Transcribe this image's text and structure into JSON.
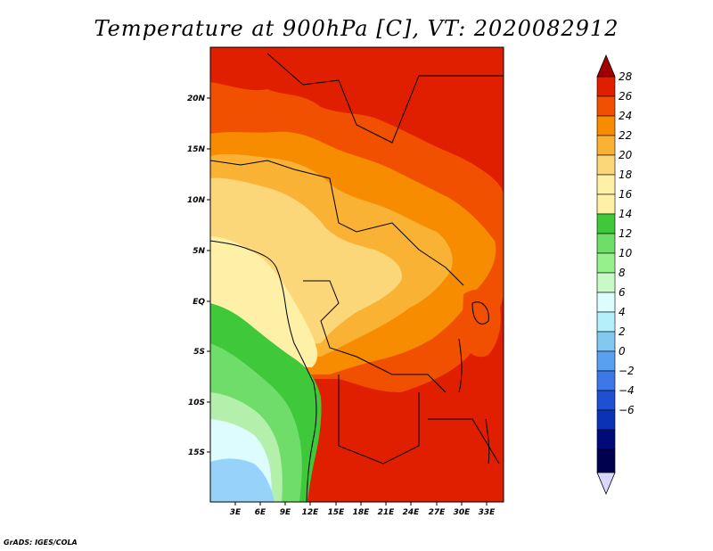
{
  "title": "Temperature at 900hPa [C], VT: 2020082912",
  "credit": "GrADS: IGES/COLA",
  "map": {
    "lat_ticks": [
      "20N",
      "15N",
      "10N",
      "5N",
      "EQ",
      "5S",
      "10S",
      "15S"
    ],
    "lon_ticks": [
      "3E",
      "6E",
      "9E",
      "12E",
      "15E",
      "18E",
      "21E",
      "24E",
      "27E",
      "30E",
      "33E"
    ],
    "zones": [
      {
        "name": "north-deep-red",
        "color": "#e01e00"
      },
      {
        "name": "sahel-orange-red",
        "color": "#f05000"
      },
      {
        "name": "orange",
        "color": "#f78c00"
      },
      {
        "name": "light-orange",
        "color": "#fab235"
      },
      {
        "name": "tan",
        "color": "#fcd77a"
      },
      {
        "name": "pale-yellow",
        "color": "#fff0a8"
      },
      {
        "name": "green",
        "color": "#3ec83a"
      },
      {
        "name": "mid-green",
        "color": "#6fdd6a"
      },
      {
        "name": "light-green",
        "color": "#b4f0ac"
      },
      {
        "name": "pale-cyan",
        "color": "#dcfcfd"
      },
      {
        "name": "light-blue",
        "color": "#96d2fa"
      }
    ]
  },
  "colorbar": {
    "labels": [
      "28",
      "26",
      "24",
      "22",
      "20",
      "18",
      "16",
      "14",
      "12",
      "10",
      "8",
      "6",
      "4",
      "2",
      "0",
      "−2",
      "−4",
      "−6"
    ],
    "colors": [
      "#a00000",
      "#e01e00",
      "#f05000",
      "#f78c00",
      "#fab235",
      "#fcd77a",
      "#fff0a8",
      "#3ec83a",
      "#6fdd6a",
      "#96f08c",
      "#c8fac8",
      "#b4f0fa",
      "#82c8f0",
      "#5aa0f0",
      "#3c78e6",
      "#1e50d2",
      "#0a32b4",
      "#000a78",
      "#000050",
      "#d7d7ff"
    ]
  }
}
